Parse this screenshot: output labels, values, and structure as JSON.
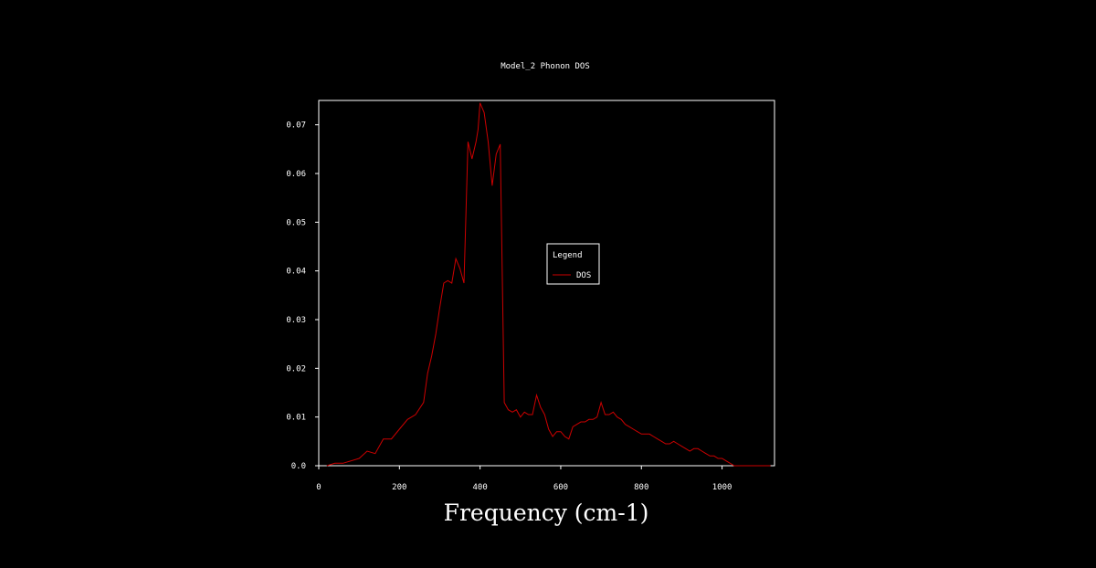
{
  "chart_data": {
    "type": "line",
    "title": "Model_2 Phonon DOS",
    "xlabel": "Frequency (cm-1)",
    "ylabel": "",
    "xlim": [
      0,
      1130
    ],
    "ylim": [
      0,
      0.075
    ],
    "x_ticks": [
      0,
      200,
      400,
      600,
      800,
      1000
    ],
    "y_ticks": [
      0.0,
      0.01,
      0.02,
      0.03,
      0.04,
      0.05,
      0.06,
      0.07
    ],
    "y_tick_labels": [
      "0.0",
      "0.01",
      "0.02",
      "0.03",
      "0.04",
      "0.05",
      "0.06",
      "0.07"
    ],
    "legend": {
      "title": "Legend",
      "placement": "center-right"
    },
    "grid": false,
    "series": [
      {
        "name": "DOS",
        "color": "#cc0000",
        "x": [
          20,
          40,
          60,
          80,
          100,
          120,
          140,
          160,
          180,
          200,
          220,
          240,
          260,
          270,
          280,
          290,
          300,
          310,
          320,
          330,
          340,
          350,
          360,
          370,
          380,
          390,
          395,
          400,
          410,
          420,
          430,
          440,
          450,
          460,
          470,
          480,
          490,
          500,
          510,
          520,
          530,
          540,
          550,
          560,
          570,
          580,
          590,
          600,
          610,
          620,
          630,
          640,
          650,
          660,
          670,
          680,
          690,
          700,
          710,
          720,
          730,
          740,
          750,
          760,
          770,
          780,
          790,
          800,
          810,
          820,
          830,
          840,
          850,
          860,
          870,
          880,
          890,
          900,
          910,
          920,
          930,
          940,
          950,
          960,
          970,
          980,
          990,
          1000,
          1010,
          1020,
          1030,
          1040,
          1050,
          1060,
          1070,
          1080,
          1090,
          1100,
          1110,
          1120
        ],
        "values": [
          0.0,
          0.0005,
          0.0005,
          0.001,
          0.0015,
          0.003,
          0.0025,
          0.0055,
          0.0055,
          0.0075,
          0.0095,
          0.0105,
          0.013,
          0.019,
          0.0225,
          0.027,
          0.0325,
          0.0375,
          0.038,
          0.0375,
          0.0425,
          0.0405,
          0.0375,
          0.0665,
          0.063,
          0.0665,
          0.069,
          0.0745,
          0.0725,
          0.0665,
          0.0575,
          0.064,
          0.066,
          0.013,
          0.0115,
          0.011,
          0.0115,
          0.01,
          0.011,
          0.0105,
          0.0105,
          0.0145,
          0.012,
          0.0105,
          0.0075,
          0.006,
          0.007,
          0.007,
          0.006,
          0.0055,
          0.008,
          0.0085,
          0.009,
          0.009,
          0.0095,
          0.0095,
          0.01,
          0.013,
          0.0105,
          0.0105,
          0.011,
          0.01,
          0.0095,
          0.0085,
          0.008,
          0.0075,
          0.007,
          0.0065,
          0.0065,
          0.0065,
          0.006,
          0.0055,
          0.005,
          0.0045,
          0.0045,
          0.005,
          0.0045,
          0.004,
          0.0035,
          0.003,
          0.0035,
          0.0035,
          0.003,
          0.0025,
          0.002,
          0.002,
          0.0015,
          0.0015,
          0.001,
          0.0005,
          0.0,
          0.0,
          0.0,
          0.0,
          0.0,
          0.0,
          0.0,
          0.0,
          0.0,
          0.0
        ]
      }
    ]
  }
}
